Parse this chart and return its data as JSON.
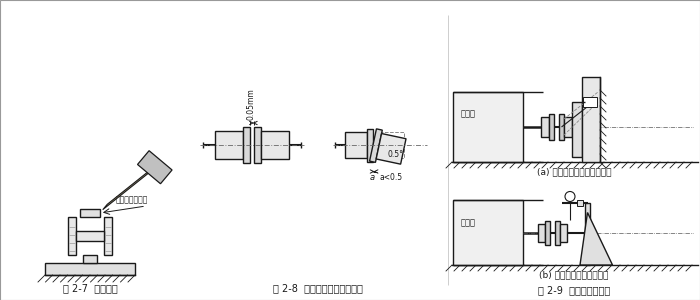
{
  "bg_color": "#ffffff",
  "fig_width": 7.0,
  "fig_height": 3.0,
  "dpi": 100,
  "caption1": "图 2-7  注意事项",
  "caption2": "图 2-8  联轴器之间的安装精度",
  "caption3": "图 2-9  安装精度的检查",
  "label_copper": "此处应垫一铜棒",
  "label_gap": "0.05mm",
  "label_angle": "0.5°",
  "label_a": "a",
  "label_a_lt": "a<0.5",
  "label_yuandongji": "原动机",
  "label_a_caption": "(a) 用百分表检查联轴器端面",
  "label_b_caption": "(b) 用百分表检查支座端面",
  "line_color": "#1a1a1a",
  "fill_color": "#e8e8e8",
  "hatch_color": "#555555"
}
